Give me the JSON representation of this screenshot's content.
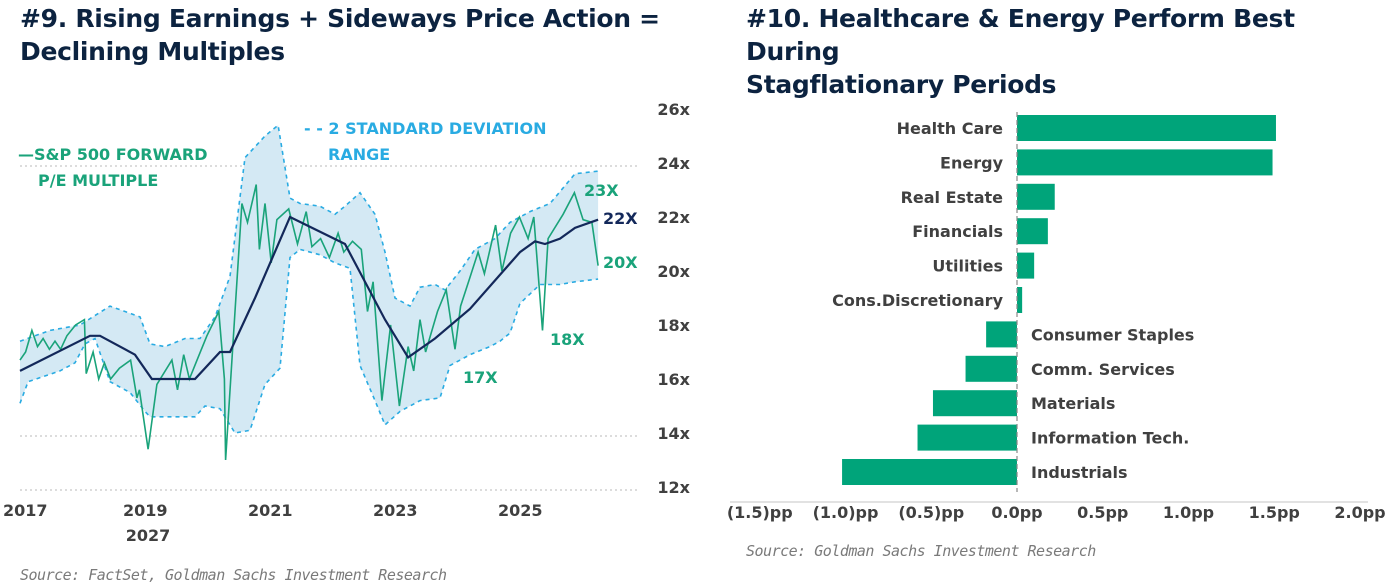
{
  "left": {
    "title_line1": "#9. Rising Earnings + Sideways Price Action =",
    "title_line2": "Declining Multiples",
    "source": "Source: FactSet, Goldman Sachs Investment Research"
  },
  "right": {
    "title_line1": "#10. Healthcare & Energy Perform Best During",
    "title_line2": "Stagflationary Periods",
    "source": "Source: Goldman Sachs Investment Research"
  },
  "chart_data": [
    {
      "type": "line",
      "title": "#9. Rising Earnings + Sideways Price Action = Declining Multiples",
      "ylim": [
        12,
        26
      ],
      "yticks": [
        "12x",
        "14x",
        "16x",
        "18x",
        "20x",
        "22x",
        "24x",
        "26x"
      ],
      "ytick_values": [
        12,
        14,
        16,
        18,
        20,
        22,
        24,
        26
      ],
      "xticks": [
        "2017",
        "2019",
        "2021",
        "2023",
        "2025"
      ],
      "xtick_values": [
        2017,
        2019,
        2021,
        2023,
        2025
      ],
      "xtick_extra": "2027",
      "xlim": [
        2017,
        2026.7
      ],
      "legend": {
        "pe": "—S&P 500 FORWARD",
        "pe2": "P/E MULTIPLE",
        "band": "- - 2 STANDARD DEVIATION",
        "band2": "RANGE"
      },
      "annotations": {
        "a23": "23X",
        "a22": "22X",
        "a20": "20X",
        "a18": "18X",
        "a17": "17X"
      },
      "colors": {
        "pe": "#1aa37a",
        "avg": "#13285a",
        "band": "#29abe2",
        "fill": "#d4e9f4"
      },
      "series": [
        {
          "name": "S&P 500 Forward P/E",
          "x": [
            2017,
            2017.09,
            2017.19,
            2017.28,
            2017.37,
            2017.47,
            2017.56,
            2017.65,
            2017.75,
            2017.89,
            2018.03,
            2018.06,
            2018.17,
            2018.26,
            2018.35,
            2018.45,
            2018.59,
            2018.77,
            2018.87,
            2018.91,
            2019.05,
            2019.19,
            2019.43,
            2019.52,
            2019.62,
            2019.71,
            2019.85,
            2019.99,
            2020.18,
            2020.27,
            2020.29,
            2020.44,
            2020.55,
            2020.64,
            2020.78,
            2020.83,
            2020.92,
            2021.02,
            2021.11,
            2021.3,
            2021.44,
            2021.58,
            2021.67,
            2021.81,
            2021.95,
            2022.09,
            2022.18,
            2022.32,
            2022.46,
            2022.56,
            2022.65,
            2022.79,
            2022.93,
            2023.07,
            2023.21,
            2023.3,
            2023.4,
            2023.49,
            2023.68,
            2023.82,
            2023.96,
            2024.05,
            2024.19,
            2024.33,
            2024.43,
            2024.61,
            2024.71,
            2024.85,
            2024.99,
            2025.13,
            2025.22,
            2025.36,
            2025.45,
            2025.69,
            2025.87,
            2026.01,
            2026.15,
            2026.25
          ],
          "y": [
            16.7,
            17.0,
            17.8,
            17.2,
            17.5,
            17.1,
            17.4,
            17.1,
            17.6,
            18.0,
            18.2,
            16.2,
            17.0,
            16.0,
            16.6,
            16.0,
            16.4,
            16.7,
            15.3,
            15.6,
            13.4,
            15.8,
            16.7,
            15.6,
            16.9,
            16.0,
            16.8,
            17.6,
            18.5,
            16.0,
            13.0,
            18.5,
            22.5,
            21.8,
            23.2,
            20.8,
            22.5,
            20.3,
            21.9,
            22.3,
            21.0,
            22.2,
            20.9,
            21.2,
            20.5,
            21.4,
            20.7,
            21.1,
            20.8,
            18.5,
            19.6,
            15.2,
            18.0,
            15.0,
            17.2,
            16.3,
            18.2,
            17.0,
            18.5,
            19.3,
            17.1,
            18.7,
            19.7,
            20.7,
            19.9,
            21.7,
            20.0,
            21.4,
            22.0,
            21.2,
            22.0,
            17.8,
            21.2,
            22.1,
            22.9,
            21.9,
            21.8,
            20.2
          ]
        },
        {
          "name": "Average",
          "x": [
            2017,
            2018.12,
            2018.28,
            2018.84,
            2019.11,
            2019.8,
            2020.2,
            2020.36,
            2020.76,
            2021.32,
            2022.2,
            2022.84,
            2023.21,
            2023.64,
            2024.2,
            2025.0,
            2025.24,
            2025.4,
            2025.64,
            2025.88,
            2026.25
          ],
          "y": [
            16.3,
            17.6,
            17.6,
            16.9,
            16.0,
            16.0,
            17.0,
            17.0,
            19.0,
            22.0,
            21.0,
            18.2,
            16.8,
            17.5,
            18.6,
            20.7,
            21.1,
            21.0,
            21.2,
            21.6,
            21.9
          ]
        },
        {
          "name": "Upper 2SD",
          "x": [
            2017,
            2017.48,
            2017.96,
            2018.44,
            2018.92,
            2019.08,
            2019.32,
            2019.64,
            2019.88,
            2020.12,
            2020.36,
            2020.6,
            2020.92,
            2021.13,
            2021.32,
            2021.48,
            2021.8,
            2022.04,
            2022.2,
            2022.44,
            2022.68,
            2022.84,
            2023.0,
            2023.24,
            2023.4,
            2023.64,
            2023.8,
            2024.04,
            2024.28,
            2024.6,
            2024.84,
            2025.16,
            2025.48,
            2025.88,
            2026.25
          ],
          "y": [
            17.4,
            17.8,
            18.0,
            18.7,
            18.3,
            17.3,
            17.2,
            17.5,
            17.5,
            18.3,
            19.8,
            24.2,
            25.0,
            25.4,
            22.7,
            22.5,
            22.4,
            22.1,
            22.4,
            22.9,
            22.1,
            20.7,
            19.0,
            18.7,
            19.4,
            19.5,
            19.3,
            20.0,
            20.8,
            21.2,
            21.8,
            22.2,
            22.5,
            23.6,
            23.7
          ]
        },
        {
          "name": "Lower 2SD",
          "x": [
            2017,
            2017.13,
            2017.64,
            2017.88,
            2018.04,
            2018.2,
            2018.44,
            2018.76,
            2019.0,
            2019.08,
            2019.8,
            2019.96,
            2020.2,
            2020.44,
            2020.68,
            2020.92,
            2021.16,
            2021.32,
            2021.48,
            2021.8,
            2022.04,
            2022.28,
            2022.44,
            2022.68,
            2022.84,
            2023.08,
            2023.4,
            2023.72,
            2023.88,
            2024.2,
            2024.52,
            2024.68,
            2024.84,
            2025.0,
            2025.32,
            2025.64,
            2025.88,
            2026.25
          ],
          "y": [
            15.1,
            15.9,
            16.3,
            16.6,
            17.3,
            17.5,
            15.9,
            15.5,
            14.8,
            14.6,
            14.6,
            15.0,
            14.9,
            14.0,
            14.1,
            15.8,
            16.4,
            20.5,
            20.8,
            20.6,
            20.3,
            20.1,
            16.5,
            15.2,
            14.3,
            14.8,
            15.2,
            15.3,
            16.5,
            16.9,
            17.2,
            17.4,
            17.7,
            18.8,
            19.5,
            19.5,
            19.6,
            19.7
          ]
        }
      ]
    },
    {
      "type": "bar",
      "orientation": "horizontal",
      "title": "#10. Healthcare & Energy Perform Best During Stagflationary Periods",
      "categories": [
        "Health Care",
        "Energy",
        "Real Estate",
        "Financials",
        "Utilities",
        "Cons.Discretionary",
        "Consumer Staples",
        "Comm. Services",
        "Materials",
        "Information Tech.",
        "Industrials"
      ],
      "values": [
        1.51,
        1.49,
        0.22,
        0.18,
        0.1,
        0.03,
        -0.18,
        -0.3,
        -0.49,
        -0.58,
        -1.02
      ],
      "unit": "pp",
      "xlim": [
        -1.5,
        2.0
      ],
      "xticks": [
        "(1.5)pp",
        "(1.0)pp",
        "(0.5)pp",
        "0.0pp",
        "0.5pp",
        "1.0pp",
        "1.5pp",
        "2.0pp"
      ],
      "xtick_values": [
        -1.5,
        -1.0,
        -0.5,
        0,
        0.5,
        1.0,
        1.5,
        2.0
      ],
      "color": "#00a47a"
    }
  ]
}
